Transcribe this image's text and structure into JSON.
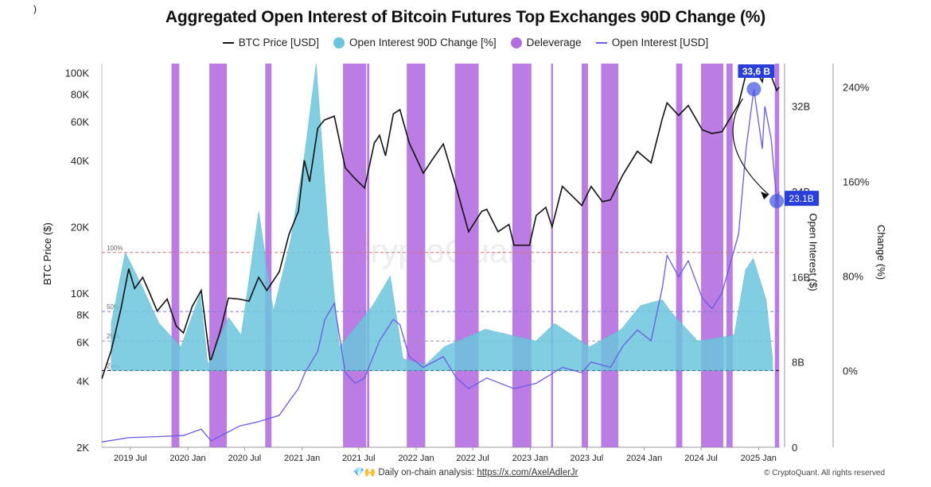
{
  "corner_mark": ")",
  "title": "Aggregated Open Interest of Bitcoin Futures Top Exchanges 90D Change (%)",
  "legend": [
    {
      "label": "BTC Price [USD]",
      "kind": "line",
      "color": "#111111"
    },
    {
      "label": "Open Interest 90D Change [%]",
      "kind": "dot",
      "color": "#6cc5dc"
    },
    {
      "label": "Deleverage",
      "kind": "dot",
      "color": "#b46ee0"
    },
    {
      "label": "Open Interest [USD]",
      "kind": "line",
      "color": "#6a5ae8"
    }
  ],
  "footer": {
    "icons": "💎🙌",
    "text": "Daily on-chain analysis: ",
    "link": "https://x.com/AxelAdlerJr"
  },
  "copyright": "© CryptoQuant. All rights reserved",
  "watermark": "CryptoQuant",
  "axis_titles": {
    "left": "BTC Price ($)",
    "right_oi": "Open Interest ($)",
    "right_change": "Change (%)"
  },
  "annotations": {
    "peak_label": "33,6 B",
    "current_label": "23.1B"
  },
  "chart_data": {
    "type": "line",
    "x_ticks": [
      "2019 Jul",
      "2020 Jan",
      "2020 Jul",
      "2021 Jan",
      "2021 Jul",
      "2022 Jan",
      "2022 Jul",
      "2023 Jan",
      "2023 Jul",
      "2024 Jan",
      "2024 Jul",
      "2025 Jan"
    ],
    "x_range": [
      "2019-04-01",
      "2025-03-10"
    ],
    "y_price": {
      "label": "BTC Price ($)",
      "scale": "log",
      "range": [
        2000,
        110000
      ],
      "ticks": [
        {
          "v": 2000,
          "t": "2K"
        },
        {
          "v": 4000,
          "t": "4K"
        },
        {
          "v": 6000,
          "t": "6K"
        },
        {
          "v": 8000,
          "t": "8K"
        },
        {
          "v": 10000,
          "t": "10K"
        },
        {
          "v": 20000,
          "t": "20K"
        },
        {
          "v": 40000,
          "t": "40K"
        },
        {
          "v": 60000,
          "t": "60K"
        },
        {
          "v": 80000,
          "t": "80K"
        },
        {
          "v": 100000,
          "t": "100K"
        }
      ]
    },
    "y_oi": {
      "label": "Open Interest ($)",
      "range": [
        0,
        36000000000
      ],
      "ticks": [
        {
          "v": 0,
          "t": "0"
        },
        {
          "v": 8000000000,
          "t": "8B"
        },
        {
          "v": 16000000000,
          "t": "16B"
        },
        {
          "v": 24000000000,
          "t": "24B"
        },
        {
          "v": 32000000000,
          "t": "32B"
        }
      ]
    },
    "y_change": {
      "label": "Change (%)",
      "range": [
        -65,
        260
      ],
      "ticks": [
        {
          "v": 0,
          "t": "0%"
        },
        {
          "v": 80,
          "t": "80%"
        },
        {
          "v": 160,
          "t": "160%"
        },
        {
          "v": 240,
          "t": "240%"
        }
      ]
    },
    "reference_lines": [
      {
        "label": "100%",
        "value": 100,
        "color": "#e07070"
      },
      {
        "label": "50%",
        "value": 50,
        "color": "#7a7ad8"
      },
      {
        "label": "25%",
        "value": 25,
        "color": "#999999"
      },
      {
        "label": "Zero",
        "value": 0,
        "color": "#222222"
      }
    ],
    "series": [
      {
        "name": "BTC Price [USD]",
        "color": "#111111",
        "points": [
          [
            "2019-04-01",
            4100
          ],
          [
            "2019-05-01",
            5500
          ],
          [
            "2019-06-01",
            8500
          ],
          [
            "2019-06-26",
            12900
          ],
          [
            "2019-07-15",
            10500
          ],
          [
            "2019-08-10",
            11800
          ],
          [
            "2019-09-01",
            10000
          ],
          [
            "2019-09-25",
            8300
          ],
          [
            "2019-10-27",
            9400
          ],
          [
            "2019-11-25",
            7100
          ],
          [
            "2019-12-18",
            6600
          ],
          [
            "2020-01-15",
            8700
          ],
          [
            "2020-02-13",
            10300
          ],
          [
            "2020-03-12",
            5000
          ],
          [
            "2020-03-16",
            5000
          ],
          [
            "2020-04-15",
            6800
          ],
          [
            "2020-05-10",
            9500
          ],
          [
            "2020-06-15",
            9400
          ],
          [
            "2020-07-15",
            9200
          ],
          [
            "2020-08-15",
            11800
          ],
          [
            "2020-09-10",
            10300
          ],
          [
            "2020-10-20",
            12500
          ],
          [
            "2020-11-20",
            18500
          ],
          [
            "2020-12-20",
            23500
          ],
          [
            "2021-01-08",
            40000
          ],
          [
            "2021-01-25",
            32000
          ],
          [
            "2021-02-20",
            56000
          ],
          [
            "2021-03-13",
            61000
          ],
          [
            "2021-04-14",
            63500
          ],
          [
            "2021-05-19",
            37000
          ],
          [
            "2021-06-20",
            33000
          ],
          [
            "2021-07-20",
            30000
          ],
          [
            "2021-08-20",
            48000
          ],
          [
            "2021-09-06",
            52000
          ],
          [
            "2021-09-25",
            42000
          ],
          [
            "2021-10-20",
            65000
          ],
          [
            "2021-11-10",
            68000
          ],
          [
            "2021-12-10",
            48000
          ],
          [
            "2022-01-24",
            35000
          ],
          [
            "2022-02-20",
            40000
          ],
          [
            "2022-03-29",
            47500
          ],
          [
            "2022-05-10",
            30000
          ],
          [
            "2022-06-18",
            19000
          ],
          [
            "2022-07-30",
            23500
          ],
          [
            "2022-08-15",
            24000
          ],
          [
            "2022-09-20",
            19000
          ],
          [
            "2022-10-25",
            20500
          ],
          [
            "2022-11-10",
            16500
          ],
          [
            "2022-12-30",
            16500
          ],
          [
            "2023-01-20",
            22500
          ],
          [
            "2023-02-20",
            24500
          ],
          [
            "2023-03-12",
            20000
          ],
          [
            "2023-04-14",
            30500
          ],
          [
            "2023-06-15",
            25000
          ],
          [
            "2023-07-15",
            30500
          ],
          [
            "2023-08-20",
            26000
          ],
          [
            "2023-09-15",
            26500
          ],
          [
            "2023-10-25",
            34500
          ],
          [
            "2023-12-10",
            44000
          ],
          [
            "2024-01-23",
            39000
          ],
          [
            "2024-02-28",
            62000
          ],
          [
            "2024-03-14",
            73000
          ],
          [
            "2024-04-20",
            64000
          ],
          [
            "2024-05-21",
            71000
          ],
          [
            "2024-07-05",
            55000
          ],
          [
            "2024-08-05",
            53000
          ],
          [
            "2024-09-06",
            54000
          ],
          [
            "2024-10-29",
            72000
          ],
          [
            "2024-11-22",
            99000
          ],
          [
            "2024-12-17",
            106000
          ],
          [
            "2025-01-13",
            91000
          ],
          [
            "2025-01-21",
            106000
          ],
          [
            "2025-02-10",
            97000
          ],
          [
            "2025-02-28",
            83000
          ],
          [
            "2025-03-08",
            86000
          ]
        ]
      },
      {
        "name": "Open Interest [USD]",
        "color": "#6a5ae8",
        "points": [
          [
            "2019-04-01",
            500000000
          ],
          [
            "2019-06-26",
            900000000
          ],
          [
            "2019-09-25",
            1000000000
          ],
          [
            "2019-12-18",
            1100000000
          ],
          [
            "2020-02-13",
            1700000000
          ],
          [
            "2020-03-16",
            600000000
          ],
          [
            "2020-06-15",
            2000000000
          ],
          [
            "2020-08-15",
            2400000000
          ],
          [
            "2020-10-20",
            3000000000
          ],
          [
            "2020-11-25",
            4500000000
          ],
          [
            "2020-12-20",
            5500000000
          ],
          [
            "2021-01-10",
            7000000000
          ],
          [
            "2021-02-20",
            9000000000
          ],
          [
            "2021-03-15",
            12000000000
          ],
          [
            "2021-04-14",
            13500000000
          ],
          [
            "2021-05-19",
            7000000000
          ],
          [
            "2021-06-20",
            6000000000
          ],
          [
            "2021-07-20",
            6500000000
          ],
          [
            "2021-09-06",
            10000000000
          ],
          [
            "2021-10-20",
            12000000000
          ],
          [
            "2021-11-10",
            11500000000
          ],
          [
            "2021-12-10",
            8500000000
          ],
          [
            "2022-01-24",
            7500000000
          ],
          [
            "2022-03-29",
            8500000000
          ],
          [
            "2022-05-10",
            6500000000
          ],
          [
            "2022-06-18",
            5500000000
          ],
          [
            "2022-08-15",
            6500000000
          ],
          [
            "2022-11-10",
            5500000000
          ],
          [
            "2023-01-20",
            6000000000
          ],
          [
            "2023-04-14",
            7500000000
          ],
          [
            "2023-06-15",
            7000000000
          ],
          [
            "2023-07-15",
            8000000000
          ],
          [
            "2023-09-15",
            7500000000
          ],
          [
            "2023-10-25",
            9500000000
          ],
          [
            "2023-12-10",
            11000000000
          ],
          [
            "2024-01-23",
            10000000000
          ],
          [
            "2024-02-28",
            15000000000
          ],
          [
            "2024-03-14",
            18000000000
          ],
          [
            "2024-04-20",
            16000000000
          ],
          [
            "2024-05-21",
            17500000000
          ],
          [
            "2024-07-05",
            14000000000
          ],
          [
            "2024-08-05",
            13000000000
          ],
          [
            "2024-09-06",
            14500000000
          ],
          [
            "2024-10-29",
            20000000000
          ],
          [
            "2024-11-22",
            28000000000
          ],
          [
            "2024-12-17",
            33600000000
          ],
          [
            "2025-01-13",
            28000000000
          ],
          [
            "2025-01-21",
            32000000000
          ],
          [
            "2025-02-10",
            29000000000
          ],
          [
            "2025-02-28",
            23100000000
          ],
          [
            "2025-03-08",
            24000000000
          ]
        ]
      },
      {
        "name": "Open Interest 90D Change [%]",
        "color": "#6cc5dc",
        "kind": "area",
        "points": [
          [
            "2019-05-01",
            40
          ],
          [
            "2019-06-15",
            100
          ],
          [
            "2019-08-01",
            75
          ],
          [
            "2019-10-01",
            40
          ],
          [
            "2019-12-10",
            20
          ],
          [
            "2020-02-10",
            65
          ],
          [
            "2020-03-05",
            5
          ],
          [
            "2020-05-10",
            45
          ],
          [
            "2020-06-20",
            30
          ],
          [
            "2020-08-15",
            135
          ],
          [
            "2020-10-01",
            50
          ],
          [
            "2020-11-25",
            110
          ],
          [
            "2021-01-10",
            185
          ],
          [
            "2021-02-15",
            260
          ],
          [
            "2021-03-25",
            120
          ],
          [
            "2021-04-30",
            20
          ],
          [
            "2021-08-15",
            55
          ],
          [
            "2021-10-10",
            80
          ],
          [
            "2021-11-20",
            10
          ],
          [
            "2022-02-01",
            5
          ],
          [
            "2022-04-01",
            20
          ],
          [
            "2022-08-10",
            35
          ],
          [
            "2023-01-20",
            25
          ],
          [
            "2023-03-20",
            40
          ],
          [
            "2023-07-10",
            20
          ],
          [
            "2023-10-20",
            35
          ],
          [
            "2023-12-20",
            55
          ],
          [
            "2024-02-28",
            60
          ],
          [
            "2024-03-25",
            50
          ],
          [
            "2024-06-20",
            25
          ],
          [
            "2024-10-15",
            30
          ],
          [
            "2024-11-20",
            85
          ],
          [
            "2024-12-15",
            95
          ],
          [
            "2025-01-25",
            60
          ],
          [
            "2025-02-15",
            10
          ]
        ]
      }
    ],
    "deleverage_ranges": [
      [
        "2019-11-10",
        "2019-12-05"
      ],
      [
        "2020-03-10",
        "2020-05-05"
      ],
      [
        "2020-09-05",
        "2020-09-25"
      ],
      [
        "2021-05-12",
        "2021-07-25"
      ],
      [
        "2021-07-28",
        "2021-08-04"
      ],
      [
        "2021-12-02",
        "2022-01-30"
      ],
      [
        "2022-05-05",
        "2022-07-20"
      ],
      [
        "2022-11-05",
        "2023-01-05"
      ],
      [
        "2023-03-09",
        "2023-03-15"
      ],
      [
        "2023-06-15",
        "2023-07-05"
      ],
      [
        "2023-08-16",
        "2023-10-10"
      ],
      [
        "2024-04-12",
        "2024-05-02"
      ],
      [
        "2024-07-01",
        "2024-09-10"
      ],
      [
        "2024-09-20",
        "2024-10-10"
      ],
      [
        "2025-02-22",
        "2025-03-08"
      ]
    ]
  }
}
